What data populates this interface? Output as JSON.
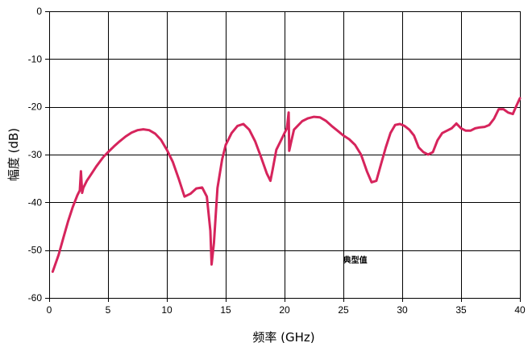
{
  "chart_data": {
    "type": "line",
    "title": "",
    "xlabel": "频率 (GHz)",
    "ylabel": "幅度 (dB)",
    "xlim": [
      0,
      40
    ],
    "ylim": [
      -60,
      0
    ],
    "xticks": [
      0,
      5,
      10,
      15,
      20,
      25,
      30,
      35,
      40
    ],
    "yticks": [
      0,
      -10,
      -20,
      -30,
      -40,
      -50,
      -60
    ],
    "grid": true,
    "annotations": [
      {
        "text": "典型值",
        "x": 26,
        "y": -52
      }
    ],
    "colors": {
      "line": "#d6245c",
      "grid": "#000000",
      "background": "#ffffff"
    },
    "series": [
      {
        "x": [
          0.3,
          0.8,
          1.2,
          1.6,
          2.0,
          2.4,
          2.6,
          2.7,
          2.8,
          2.9,
          3.2,
          3.6,
          4.0,
          4.6,
          5.0,
          5.5,
          6.0,
          6.5,
          7.0,
          7.5,
          8.0,
          8.5,
          9.0,
          9.5,
          10.0,
          10.5,
          11.0,
          11.5,
          12.0,
          12.5,
          13.0,
          13.4,
          13.7,
          13.8,
          14.0,
          14.3,
          14.7,
          15.0,
          15.5,
          16.0,
          16.5,
          17.0,
          17.5,
          18.0,
          18.5,
          18.8,
          19.0,
          19.3,
          19.6,
          20.0,
          20.2,
          20.35,
          20.4,
          20.55,
          20.8,
          21.5,
          22.0,
          22.5,
          23.0,
          23.5,
          24.0,
          24.5,
          25.0,
          25.5,
          26.0,
          26.5,
          27.0,
          27.4,
          27.8,
          28.2,
          28.6,
          29.0,
          29.4,
          29.8,
          30.2,
          30.6,
          31.0,
          31.4,
          31.8,
          32.2,
          32.6,
          33.0,
          33.4,
          33.8,
          34.2,
          34.6,
          35.0,
          35.4,
          35.8,
          36.2,
          36.6,
          37.0,
          37.4,
          37.8,
          38.2,
          38.6,
          39.0,
          39.4,
          39.7,
          40.0
        ],
        "y": [
          -54.5,
          -51,
          -47.5,
          -44,
          -41,
          -38.5,
          -37.5,
          -33.5,
          -38,
          -37,
          -35.5,
          -34,
          -32.5,
          -30.5,
          -29.5,
          -28.3,
          -27.2,
          -26.2,
          -25.4,
          -24.9,
          -24.7,
          -24.9,
          -25.6,
          -26.9,
          -29,
          -31.5,
          -35,
          -38.8,
          -38.2,
          -37.1,
          -36.9,
          -38.8,
          -46,
          -53,
          -48.5,
          -37,
          -31,
          -28,
          -25.5,
          -24,
          -23.6,
          -24.8,
          -27.2,
          -30.5,
          -34,
          -35.5,
          -33,
          -29,
          -27.5,
          -25.5,
          -24.5,
          -21.2,
          -29.2,
          -27.5,
          -24.8,
          -23,
          -22.4,
          -22.1,
          -22.2,
          -22.9,
          -24,
          -25,
          -26,
          -26.8,
          -28,
          -30,
          -33.5,
          -35.8,
          -35.5,
          -32,
          -28.5,
          -25.5,
          -23.8,
          -23.6,
          -24,
          -24.8,
          -26,
          -28.5,
          -29.5,
          -30,
          -29.5,
          -27,
          -25.5,
          -25,
          -24.5,
          -23.5,
          -24.5,
          -25,
          -25,
          -24.5,
          -24.3,
          -24.2,
          -23.8,
          -22.5,
          -20.5,
          -20.5,
          -21.2,
          -21.5,
          -19.8,
          -18.2
        ]
      }
    ]
  }
}
